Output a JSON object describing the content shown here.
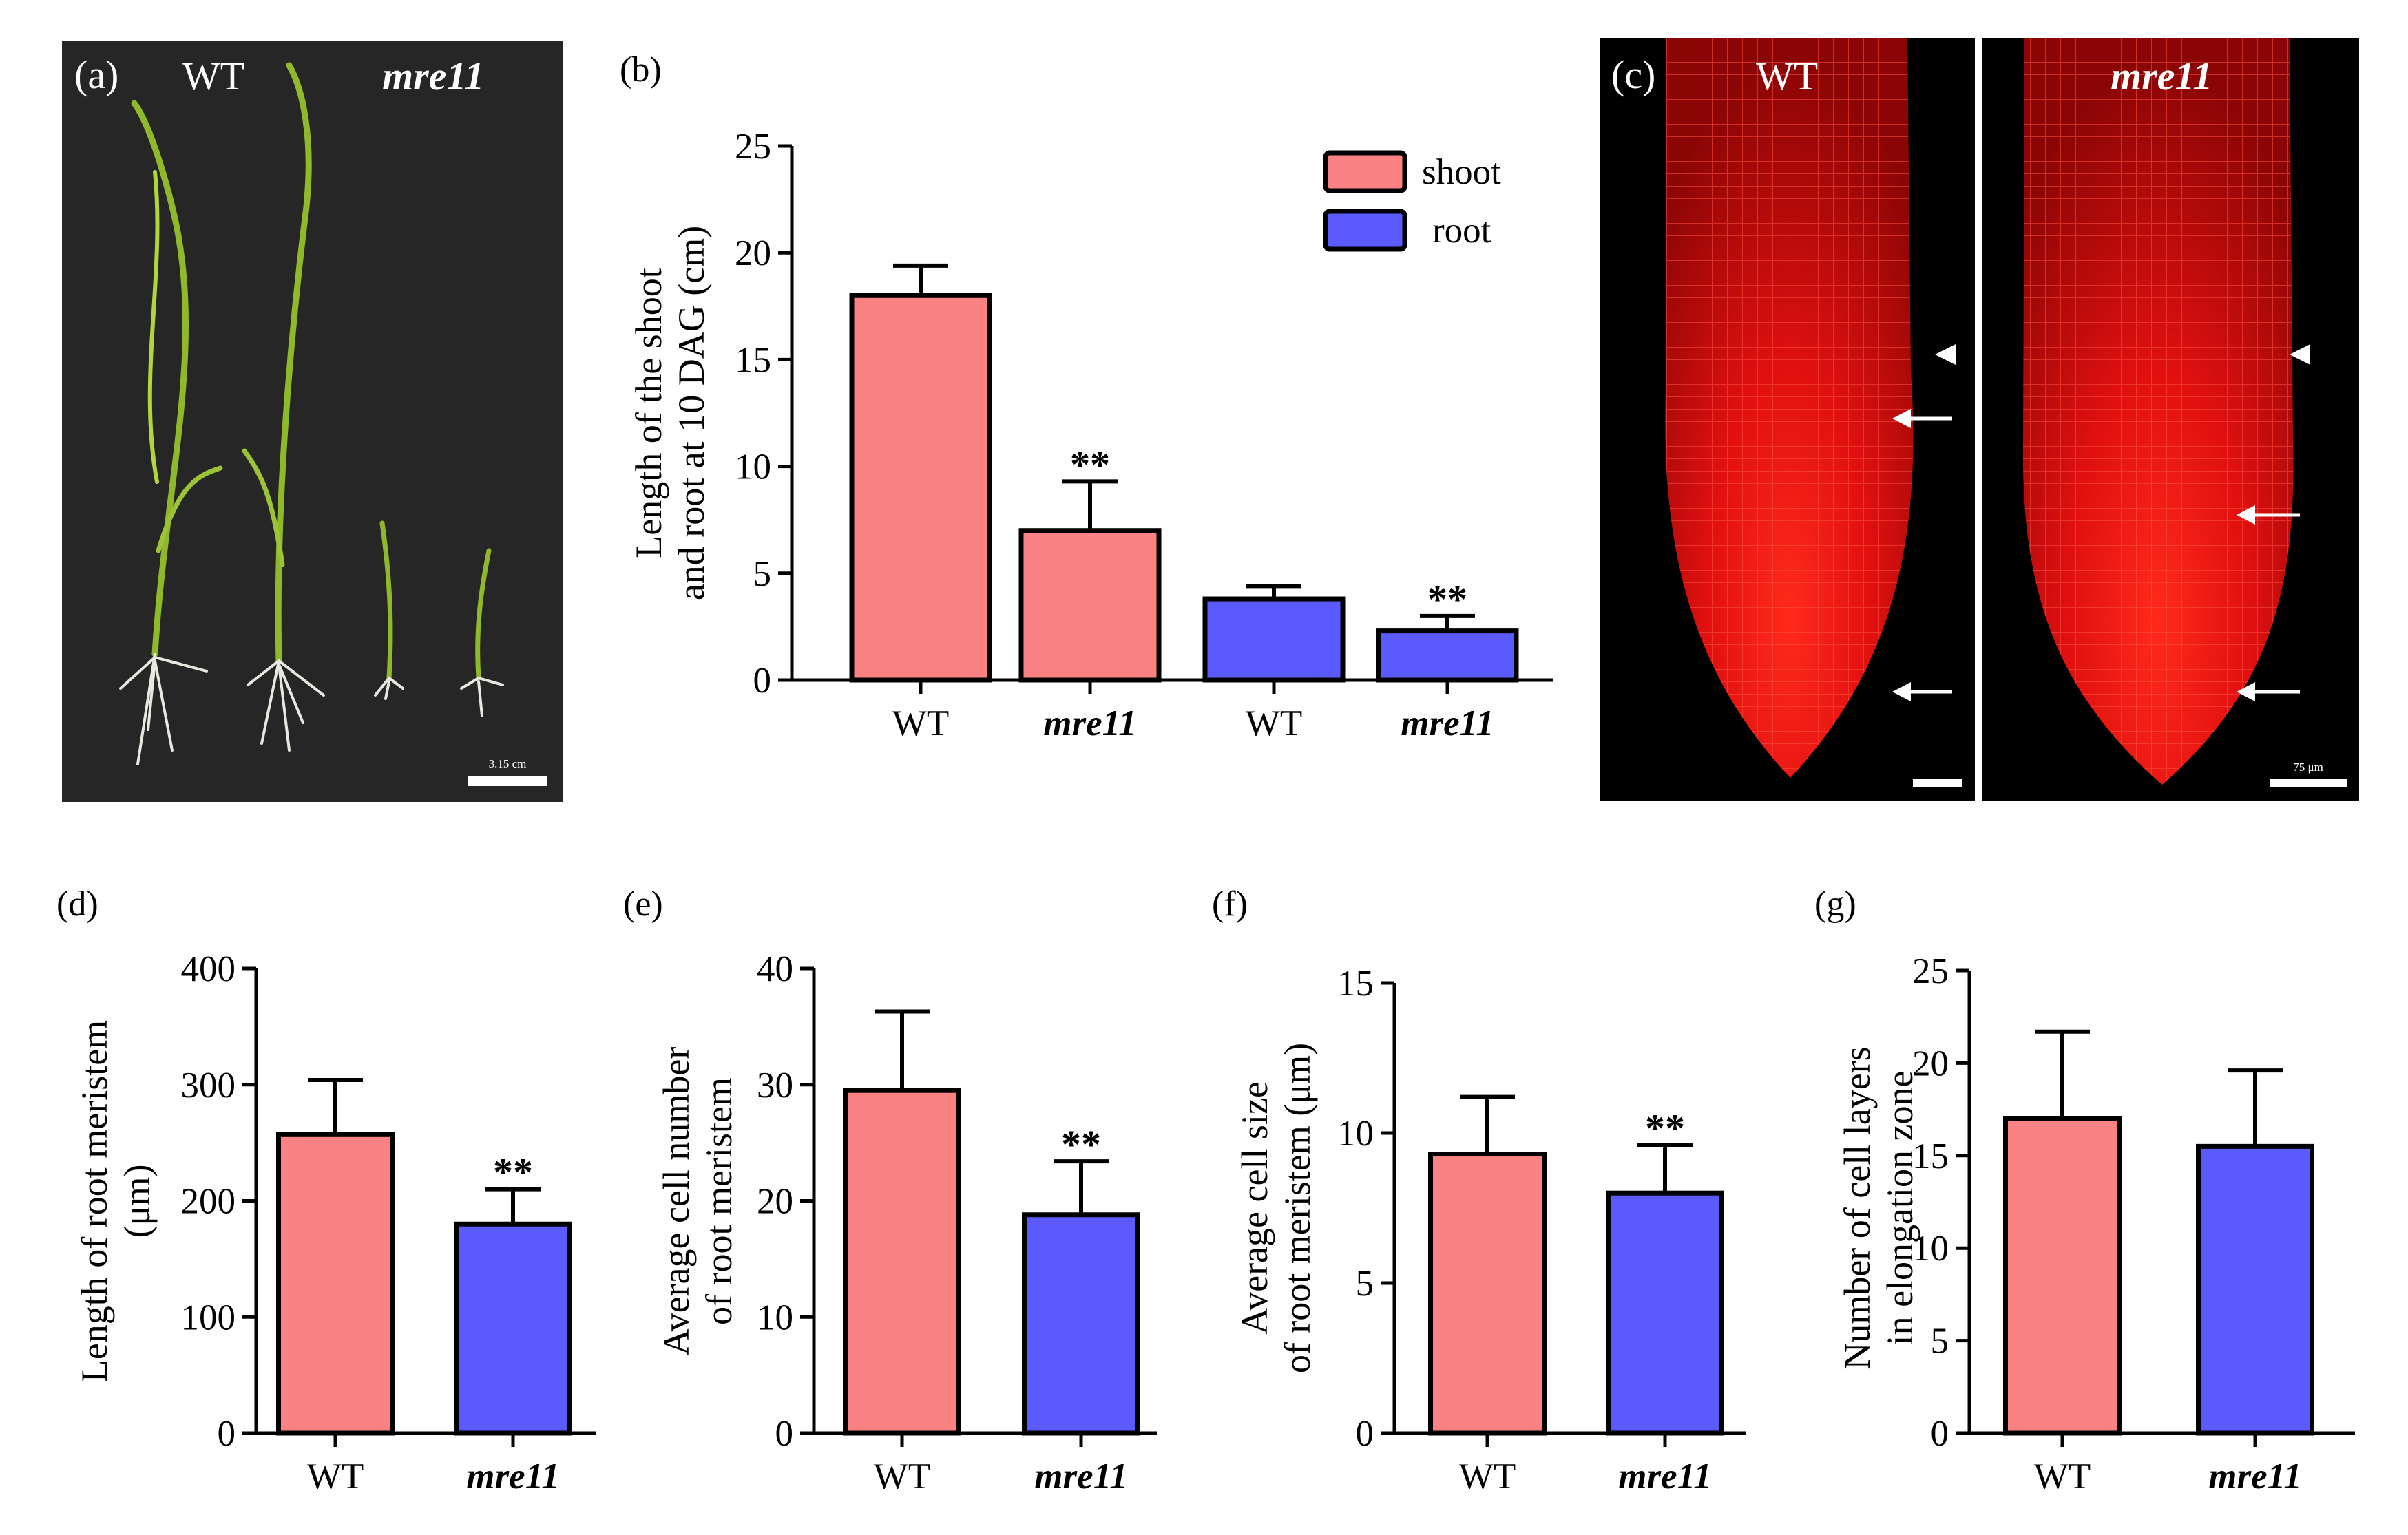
{
  "panels": {
    "a": {
      "label": "(a)",
      "wt_label": "WT",
      "mut_label": "mre11",
      "scale_text": "3.15 cm"
    },
    "c": {
      "label": "(c)",
      "wt_label": "WT",
      "mut_label": "mre11",
      "scale_text": "75 μm"
    }
  },
  "colors": {
    "shoot": "#fa8282",
    "root": "#5a5aff",
    "photo_bg": "#262626",
    "root_red": "#e01010"
  },
  "significance_mark": "**",
  "chart_data": [
    {
      "id": "b",
      "panel_label": "(b)",
      "type": "bar",
      "ylabel": [
        "Length of the shoot",
        "and root at 10 DAG (cm)"
      ],
      "categories": [
        "WT",
        "mre11",
        "WT",
        "mre11"
      ],
      "category_italic": [
        false,
        true,
        false,
        true
      ],
      "values": [
        18,
        7,
        3.8,
        2.3
      ],
      "errors": [
        1.4,
        2.3,
        0.6,
        0.7
      ],
      "bar_colors": [
        "shoot",
        "shoot",
        "root",
        "root"
      ],
      "significant": [
        false,
        true,
        false,
        true
      ],
      "ylim": [
        0,
        25
      ],
      "yticks": [
        0,
        5,
        10,
        15,
        20,
        25
      ],
      "legend": [
        {
          "label": "shoot",
          "color": "shoot"
        },
        {
          "label": "root",
          "color": "root"
        }
      ],
      "legend_position": "top-right"
    },
    {
      "id": "d",
      "panel_label": "(d)",
      "type": "bar",
      "ylabel": [
        "Length of root meristem",
        "(μm)"
      ],
      "categories": [
        "WT",
        "mre11"
      ],
      "category_italic": [
        false,
        true
      ],
      "values": [
        257,
        180
      ],
      "errors": [
        47,
        30
      ],
      "bar_colors": [
        "shoot",
        "root"
      ],
      "significant": [
        false,
        true
      ],
      "ylim": [
        0,
        400
      ],
      "yticks": [
        0,
        100,
        200,
        300,
        400
      ]
    },
    {
      "id": "e",
      "panel_label": "(e)",
      "type": "bar",
      "ylabel": [
        "Average cell number",
        "of root meristem"
      ],
      "categories": [
        "WT",
        "mre11"
      ],
      "category_italic": [
        false,
        true
      ],
      "values": [
        29.5,
        18.8
      ],
      "errors": [
        6.8,
        4.6
      ],
      "bar_colors": [
        "shoot",
        "root"
      ],
      "significant": [
        false,
        true
      ],
      "ylim": [
        0,
        40
      ],
      "yticks": [
        0,
        10,
        20,
        30,
        40
      ]
    },
    {
      "id": "f",
      "panel_label": "(f)",
      "type": "bar",
      "ylabel": [
        "Average cell size",
        "of root meristem  (μm)"
      ],
      "categories": [
        "WT",
        "mre11"
      ],
      "category_italic": [
        false,
        true
      ],
      "values": [
        9.3,
        8.0
      ],
      "errors": [
        1.9,
        1.6
      ],
      "bar_colors": [
        "shoot",
        "root"
      ],
      "significant": [
        false,
        true
      ],
      "ylim": [
        0,
        15
      ],
      "yticks": [
        0,
        5,
        10,
        15
      ]
    },
    {
      "id": "g",
      "panel_label": "(g)",
      "type": "bar",
      "ylabel": [
        "Number of cell layers",
        "in elongation zone"
      ],
      "categories": [
        "WT",
        "mre11"
      ],
      "category_italic": [
        false,
        true
      ],
      "values": [
        17,
        15.5
      ],
      "errors": [
        4.7,
        4.1
      ],
      "bar_colors": [
        "shoot",
        "root"
      ],
      "significant": [
        false,
        false
      ],
      "ylim": [
        0,
        25
      ],
      "yticks": [
        0,
        5,
        10,
        15,
        20,
        25
      ]
    }
  ]
}
